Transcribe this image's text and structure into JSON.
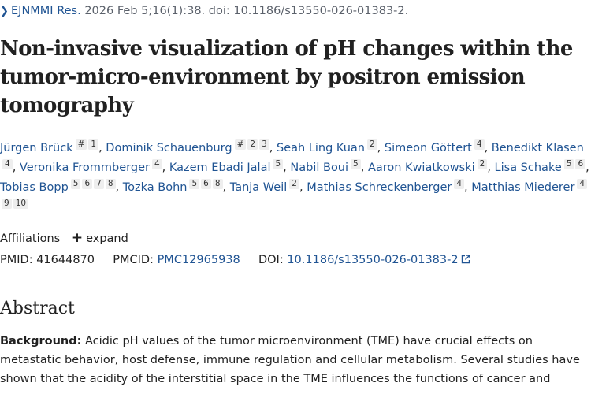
{
  "citation": {
    "journal": "EJNMMI Res.",
    "details": "2026 Feb 5;16(1):38. doi: 10.1186/s13550-026-01383-2."
  },
  "article": {
    "title": "Non-invasive visualization of pH changes within the tumor-micro-environment by positron emission tomography"
  },
  "authors": [
    {
      "name": "Jürgen Brück",
      "affils": [
        "#",
        "1"
      ]
    },
    {
      "name": "Dominik Schauenburg",
      "affils": [
        "#",
        "2",
        "3"
      ]
    },
    {
      "name": "Seah Ling Kuan",
      "affils": [
        "2"
      ]
    },
    {
      "name": "Simeon Göttert",
      "affils": [
        "4"
      ]
    },
    {
      "name": "Benedikt Klasen",
      "affils": [
        "4"
      ]
    },
    {
      "name": "Veronika Frommberger",
      "affils": [
        "4"
      ]
    },
    {
      "name": "Kazem Ebadi Jalal",
      "affils": [
        "5"
      ]
    },
    {
      "name": "Nabil Boui",
      "affils": [
        "5"
      ]
    },
    {
      "name": "Aaron Kwiatkowski",
      "affils": [
        "2"
      ]
    },
    {
      "name": "Lisa Schake",
      "affils": [
        "5",
        "6"
      ]
    },
    {
      "name": "Tobias Bopp",
      "affils": [
        "5",
        "6",
        "7",
        "8"
      ]
    },
    {
      "name": "Tozka Bohn",
      "affils": [
        "5",
        "6",
        "8"
      ]
    },
    {
      "name": "Tanja Weil",
      "affils": [
        "2"
      ]
    },
    {
      "name": "Mathias Schreckenberger",
      "affils": [
        "4"
      ]
    },
    {
      "name": "Matthias Miederer",
      "affils": [
        "4",
        "9",
        "10"
      ]
    }
  ],
  "affiliations": {
    "label": "Affiliations",
    "expand_label": "expand"
  },
  "ids": {
    "pmid_label": "PMID:",
    "pmid": "41644870",
    "pmcid_label": "PMCID:",
    "pmcid": "PMC12965938",
    "doi_label": "DOI:",
    "doi": "10.1186/s13550-026-01383-2"
  },
  "abstract": {
    "heading": "Abstract",
    "background_label": "Background:",
    "background_text": "Acidic pH values of the tumor microenvironment (TME) have crucial effects on metastatic behavior, host defense, immune regulation and cellular metabolism. Several studies have shown that the acidity of the interstitial space in the TME influences the functions of cancer and"
  },
  "colors": {
    "link": "#205493",
    "text": "#212121",
    "badge_bg": "#eeeeee"
  }
}
